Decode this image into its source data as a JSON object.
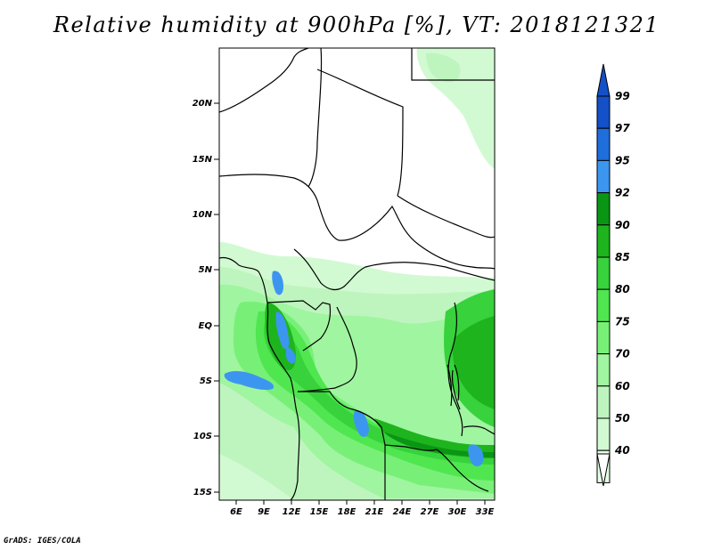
{
  "title": "Relative humidity at 900hPa [%], VT: 2018121321",
  "credit": "GrADS: IGES/COLA",
  "map": {
    "lat_labels": [
      "20N",
      "15N",
      "10N",
      "5N",
      "EQ",
      "5S",
      "10S",
      "15S"
    ],
    "lon_labels": [
      "6E",
      "9E",
      "12E",
      "15E",
      "18E",
      "21E",
      "24E",
      "27E",
      "30E",
      "33E"
    ]
  },
  "colorbar": {
    "labels": [
      "99",
      "97",
      "95",
      "92",
      "90",
      "85",
      "80",
      "75",
      "70",
      "60",
      "50",
      "40"
    ],
    "colors": [
      "#1450c8",
      "#1e6edc",
      "#3c96f0",
      "#0a9614",
      "#1eb41e",
      "#37d23c",
      "#50e650",
      "#78f078",
      "#a0f5a0",
      "#bef5be",
      "#d2fad2",
      "#e6ffe6"
    ],
    "under_color": "#ffffff",
    "over_color": "#1450c8"
  }
}
